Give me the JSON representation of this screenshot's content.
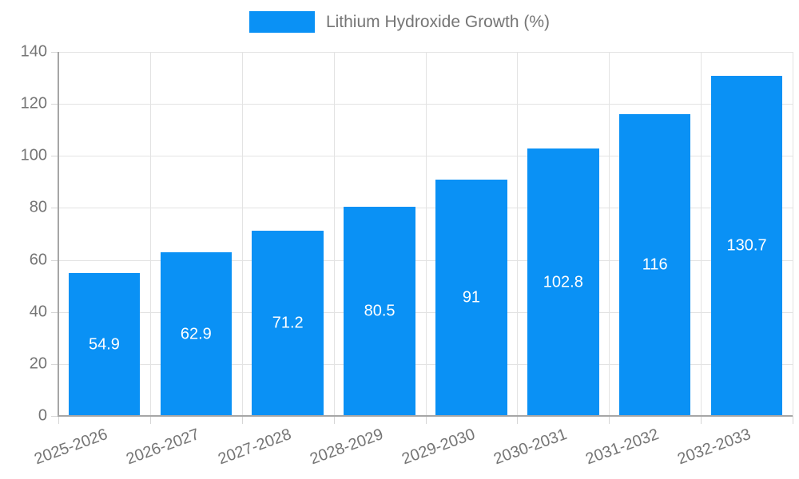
{
  "chart_data": {
    "type": "bar",
    "title": "",
    "series_name": "Lithium Hydroxide Growth (%)",
    "categories": [
      "2025-2026",
      "2026-2027",
      "2027-2028",
      "2028-2029",
      "2029-2030",
      "2030-2031",
      "2031-2032",
      "2032-2033"
    ],
    "values": [
      54.9,
      62.9,
      71.2,
      80.5,
      91,
      102.8,
      116,
      130.7
    ],
    "value_labels": [
      "54.9",
      "62.9",
      "71.2",
      "80.5",
      "91",
      "102.8",
      "116",
      "130.7"
    ],
    "xlabel": "",
    "ylabel": "",
    "ylim": [
      0,
      140
    ],
    "yticks": [
      0,
      20,
      40,
      60,
      80,
      100,
      120,
      140
    ],
    "grid": "on",
    "legend_position": "top-center",
    "colors": {
      "bar": "#0a91f5",
      "value_label": "#ffffff",
      "axis_text": "#757575",
      "grid_line": "#e3e3e3",
      "axis_line": "#a6a6a6",
      "tick_mark": "#d6d6d6",
      "background": "#ffffff"
    }
  }
}
